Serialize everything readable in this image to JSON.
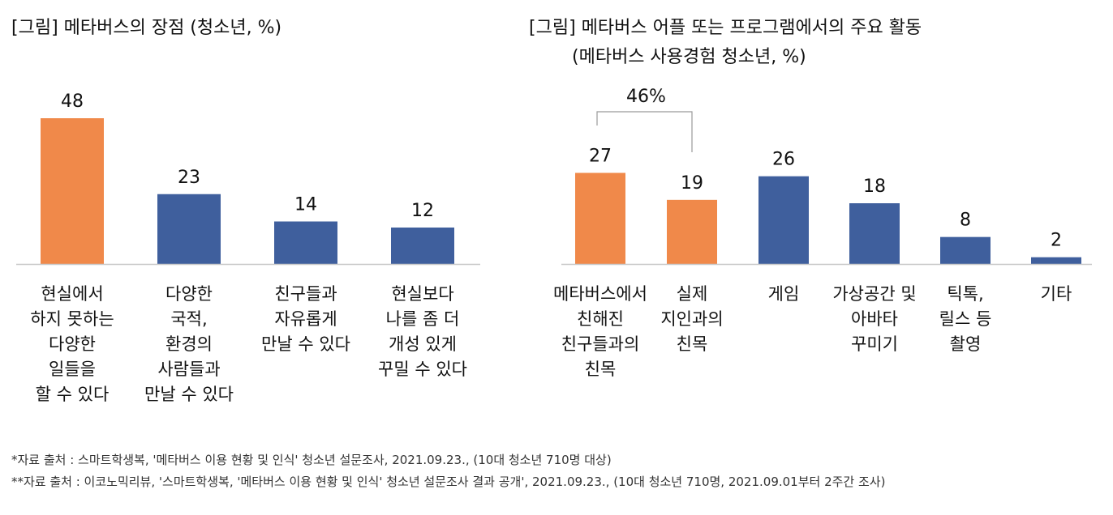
{
  "chart_data": [
    {
      "type": "bar",
      "title": "[그림] 메타버스의 장점 (청소년, %)",
      "categories": [
        [
          "현실에서",
          "하지 못하는",
          "다양한",
          "일들을",
          "할 수 있다"
        ],
        [
          "다양한",
          "국적,",
          "환경의",
          "사람들과",
          "만날 수 있다"
        ],
        [
          "친구들과",
          "자유롭게",
          "만날 수 있다"
        ],
        [
          "현실보다",
          "나를 좀 더",
          "개성 있게",
          "꾸밀 수 있다"
        ]
      ],
      "values": [
        48,
        23,
        14,
        12
      ],
      "data_labels": [
        "48",
        "23",
        "14",
        "12"
      ],
      "colors": [
        "#F0894A",
        "#3F5F9D",
        "#3F5F9D",
        "#3F5F9D"
      ],
      "ylim": [
        0,
        52
      ],
      "grid": false
    },
    {
      "type": "bar",
      "title": "[그림] 메타버스 어플 또는 프로그램에서의 주요 활동",
      "subtitle": "(메타버스 사용경험 청소년, %)",
      "categories": [
        [
          "메타버스에서",
          "친해진",
          "친구들과의",
          "친목"
        ],
        [
          "실제",
          "지인과의",
          "친목"
        ],
        [
          "게임"
        ],
        [
          "가상공간 및",
          "아바타",
          "꾸미기"
        ],
        [
          "틱톡,",
          "릴스 등",
          "촬영"
        ],
        [
          "기타"
        ]
      ],
      "values": [
        27,
        19,
        26,
        18,
        8,
        2
      ],
      "data_labels": [
        "27",
        "19",
        "26",
        "18",
        "8",
        "2"
      ],
      "colors": [
        "#F0894A",
        "#F0894A",
        "#3F5F9D",
        "#3F5F9D",
        "#3F5F9D",
        "#3F5F9D"
      ],
      "ylim": [
        0,
        30
      ],
      "grid": false,
      "annotation": {
        "text": "46%",
        "spans_categories": [
          0,
          1
        ]
      }
    }
  ],
  "footnotes": [
    "*자료 출처 : 스마트학생복, '메타버스 이용 현황 및 인식' 청소년 설문조사, 2021.09.23., (10대 청소년 710명 대상)",
    "**자료 출처 : 이코노믹리뷰, '스마트학생복, '메타버스 이용 현황 및 인식' 청소년 설문조사 결과 공개', 2021.09.23., (10대 청소년 710명, 2021.09.01부터 2주간 조사)"
  ]
}
